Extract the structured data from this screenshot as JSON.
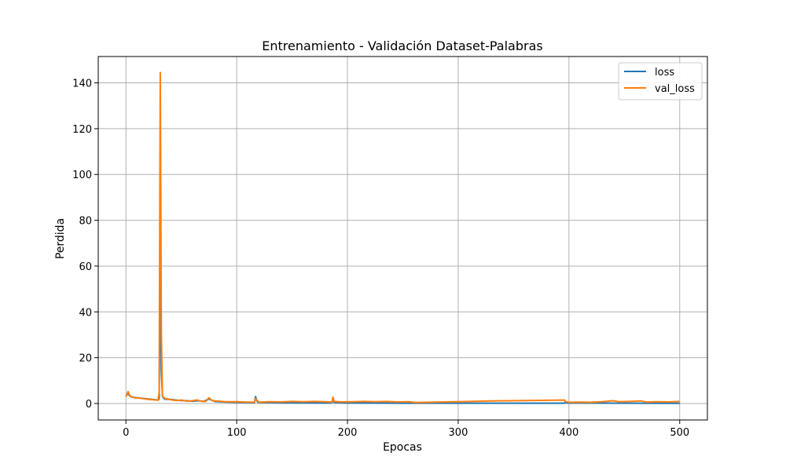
{
  "chart_data": {
    "type": "line",
    "title": "Entrenamiento - Validación Dataset-Palabras",
    "xlabel": "Epocas",
    "ylabel": "Perdida",
    "xlim": [
      -25,
      525
    ],
    "ylim": [
      -7.2,
      151.5
    ],
    "xticks": [
      0,
      100,
      200,
      300,
      400,
      500
    ],
    "yticks": [
      0,
      20,
      40,
      60,
      80,
      100,
      120,
      140
    ],
    "grid": true,
    "legend_position": "top-right",
    "series": [
      {
        "name": "loss",
        "color": "#1f77b4",
        "points": [
          [
            0,
            3.0
          ],
          [
            1,
            3.8
          ],
          [
            2,
            4.5
          ],
          [
            3,
            3.5
          ],
          [
            5,
            2.8
          ],
          [
            8,
            2.6
          ],
          [
            12,
            2.4
          ],
          [
            16,
            2.2
          ],
          [
            20,
            2.0
          ],
          [
            25,
            1.7
          ],
          [
            29,
            1.5
          ],
          [
            30,
            2.0
          ],
          [
            31,
            60.0
          ],
          [
            32,
            14.0
          ],
          [
            33,
            3.0
          ],
          [
            35,
            1.9
          ],
          [
            40,
            1.8
          ],
          [
            45,
            1.5
          ],
          [
            50,
            1.3
          ],
          [
            55,
            1.2
          ],
          [
            60,
            1.0
          ],
          [
            65,
            1.2
          ],
          [
            70,
            0.9
          ],
          [
            75,
            2.0
          ],
          [
            80,
            0.9
          ],
          [
            90,
            0.6
          ],
          [
            100,
            0.5
          ],
          [
            110,
            0.4
          ],
          [
            116,
            0.3
          ],
          [
            117,
            3.0
          ],
          [
            118,
            1.5
          ],
          [
            119,
            0.5
          ],
          [
            125,
            0.4
          ],
          [
            140,
            0.3
          ],
          [
            160,
            0.25
          ],
          [
            180,
            0.2
          ],
          [
            186,
            0.3
          ],
          [
            187,
            2.0
          ],
          [
            188,
            0.4
          ],
          [
            200,
            0.2
          ],
          [
            250,
            0.15
          ],
          [
            300,
            0.15
          ],
          [
            350,
            0.15
          ],
          [
            396,
            0.15
          ],
          [
            397,
            0.8
          ],
          [
            398,
            0.2
          ],
          [
            450,
            0.12
          ],
          [
            500,
            0.1
          ]
        ]
      },
      {
        "name": "val_loss",
        "color": "#ff7f0e",
        "points": [
          [
            0,
            3.0
          ],
          [
            1,
            4.0
          ],
          [
            2,
            5.2
          ],
          [
            3,
            3.8
          ],
          [
            5,
            2.8
          ],
          [
            8,
            2.5
          ],
          [
            12,
            2.4
          ],
          [
            16,
            2.1
          ],
          [
            20,
            1.8
          ],
          [
            25,
            1.6
          ],
          [
            29,
            1.4
          ],
          [
            30,
            5.0
          ],
          [
            31,
            144.5
          ],
          [
            32,
            30.0
          ],
          [
            33,
            3.2
          ],
          [
            35,
            2.2
          ],
          [
            38,
            2.0
          ],
          [
            42,
            1.5
          ],
          [
            46,
            1.3
          ],
          [
            50,
            1.5
          ],
          [
            55,
            1.0
          ],
          [
            60,
            1.2
          ],
          [
            64,
            1.5
          ],
          [
            68,
            1.0
          ],
          [
            72,
            0.9
          ],
          [
            75,
            2.5
          ],
          [
            78,
            1.2
          ],
          [
            85,
            1.0
          ],
          [
            90,
            0.8
          ],
          [
            100,
            0.8
          ],
          [
            110,
            0.6
          ],
          [
            116,
            0.5
          ],
          [
            117,
            2.2
          ],
          [
            118,
            1.4
          ],
          [
            120,
            0.6
          ],
          [
            130,
            0.8
          ],
          [
            140,
            0.7
          ],
          [
            150,
            0.9
          ],
          [
            160,
            0.8
          ],
          [
            170,
            0.9
          ],
          [
            180,
            0.8
          ],
          [
            186,
            0.6
          ],
          [
            187,
            2.8
          ],
          [
            188,
            0.9
          ],
          [
            195,
            0.7
          ],
          [
            205,
            0.8
          ],
          [
            215,
            0.9
          ],
          [
            225,
            0.8
          ],
          [
            235,
            0.9
          ],
          [
            245,
            0.7
          ],
          [
            255,
            0.8
          ],
          [
            262,
            0.4
          ],
          [
            280,
            0.6
          ],
          [
            300,
            0.8
          ],
          [
            330,
            1.1
          ],
          [
            360,
            1.3
          ],
          [
            396,
            1.5
          ],
          [
            397,
            0.8
          ],
          [
            400,
            0.5
          ],
          [
            410,
            0.6
          ],
          [
            420,
            0.5
          ],
          [
            430,
            0.8
          ],
          [
            440,
            1.2
          ],
          [
            445,
            0.8
          ],
          [
            455,
            0.9
          ],
          [
            465,
            1.1
          ],
          [
            470,
            0.6
          ],
          [
            480,
            0.8
          ],
          [
            490,
            0.7
          ],
          [
            500,
            0.9
          ]
        ]
      }
    ]
  }
}
